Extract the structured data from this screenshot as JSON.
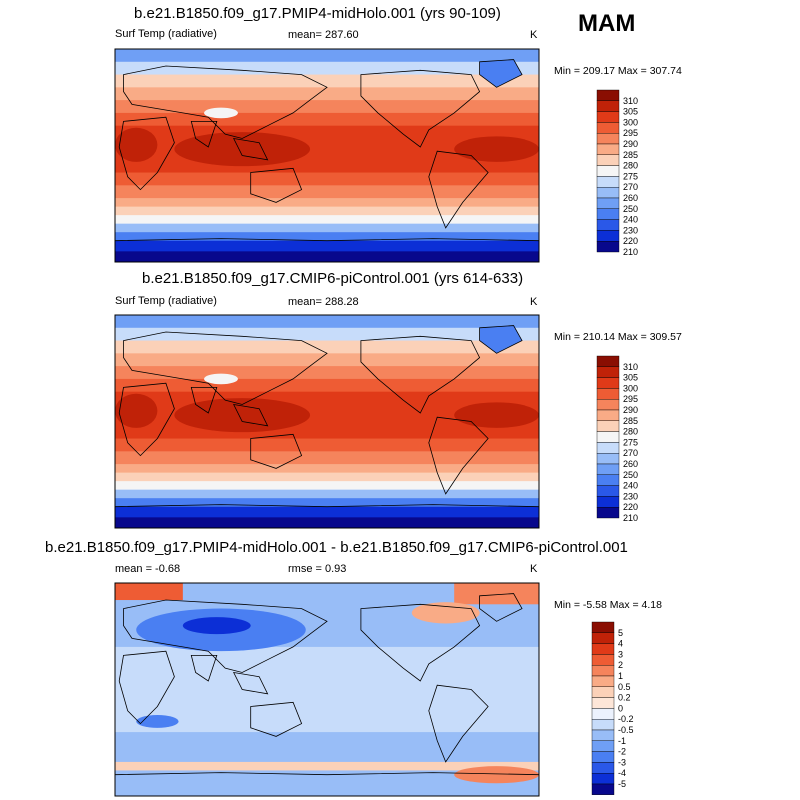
{
  "season": "MAM",
  "colors": {
    "abs_scale": [
      "#08088c",
      "#0c2fd6",
      "#2a58e8",
      "#4a7ff2",
      "#6f9ff5",
      "#98bdf7",
      "#c7dcfa",
      "#f5f5f5",
      "#fbd1b8",
      "#f9ab86",
      "#f5845c",
      "#ee5c34",
      "#e03a18",
      "#c02208",
      "#8a0e02"
    ],
    "diff_scale": [
      "#08088c",
      "#0c2fd6",
      "#2a58e8",
      "#4a7ff2",
      "#6f9ff5",
      "#98bdf7",
      "#c7dcfa",
      "#ecf2fd",
      "#fde6d8",
      "#fbd1b8",
      "#f9ab86",
      "#f5845c",
      "#ee5c34",
      "#e03a18",
      "#c02208",
      "#8a0e02"
    ]
  },
  "chart_data": [
    {
      "type": "heatmap",
      "title": "b.e21.B1850.f09_g17.PMIP4-midHolo.001 (yrs 90-109)",
      "variable": "Surf Temp (radiative)",
      "units": "K",
      "mean_text": "mean= 287.60",
      "minmax_text": "Min = 209.17 Max = 307.74",
      "min": 209.17,
      "max": 307.74,
      "mean": 287.6,
      "colorbar_levels": [
        "310",
        "305",
        "300",
        "295",
        "290",
        "285",
        "280",
        "275",
        "270",
        "260",
        "250",
        "240",
        "230",
        "220",
        "210"
      ]
    },
    {
      "type": "heatmap",
      "title": "b.e21.B1850.f09_g17.CMIP6-piControl.001 (yrs 614-633)",
      "variable": "Surf Temp (radiative)",
      "units": "K",
      "mean_text": "mean= 288.28",
      "minmax_text": "Min = 210.14 Max = 309.57",
      "min": 210.14,
      "max": 309.57,
      "mean": 288.28,
      "colorbar_levels": [
        "310",
        "305",
        "300",
        "295",
        "290",
        "285",
        "280",
        "275",
        "270",
        "260",
        "250",
        "240",
        "230",
        "220",
        "210"
      ]
    },
    {
      "type": "heatmap",
      "title": "b.e21.B1850.f09_g17.PMIP4-midHolo.001 - b.e21.B1850.f09_g17.CMIP6-piControl.001",
      "variable": "",
      "units": "K",
      "mean_text": "mean =  -0.68",
      "rmse_text": "rmse =   0.93",
      "minmax_text": "Min =  -5.58 Max =   4.18",
      "min": -5.58,
      "max": 4.18,
      "mean": -0.68,
      "rmse": 0.93,
      "colorbar_levels": [
        "5",
        "4",
        "3",
        "2",
        "1",
        "0.5",
        "0.2",
        "0",
        "-0.2",
        "-0.5",
        "-1",
        "-2",
        "-3",
        "-4",
        "-5"
      ]
    }
  ]
}
